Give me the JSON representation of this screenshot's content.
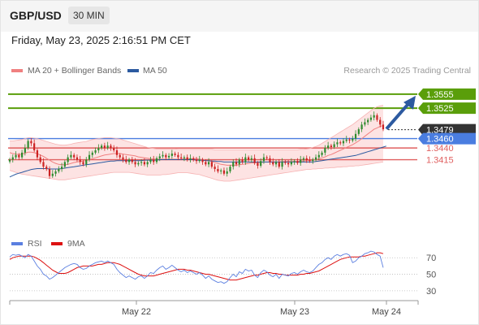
{
  "header": {
    "symbol": "GBP/USD",
    "timeframe": "30 MIN"
  },
  "timestamp": "Friday, May 23, 2025 2:16:51 PM CET",
  "credit": "Research © 2025 Trading Central",
  "colors": {
    "up": "#2e8b2e",
    "down": "#cc2222",
    "ma50": "#2c5aa0",
    "bollinger": "#f08080",
    "target": "#5a9e0a",
    "pivot": "#4a7de0",
    "support": "#e06060",
    "arrow": "#2c5aa0",
    "rsi": "#5b7fe0",
    "rsi9ma": "#dd1111"
  },
  "chart_data": [
    {
      "type": "candlestick",
      "legend": [
        {
          "name": "MA 20 + Bollinger Bands",
          "color": "#f08080"
        },
        {
          "name": "MA 50",
          "color": "#2c5aa0"
        }
      ],
      "ylim": [
        1.327,
        1.36
      ],
      "x_ticks": [
        "May 22",
        "May 23",
        "May 24"
      ],
      "levels": [
        {
          "label": "1.3555",
          "value": 1.3555,
          "kind": "target"
        },
        {
          "label": "1.3525",
          "value": 1.3525,
          "kind": "target"
        },
        {
          "label": "1.3479",
          "value": 1.3479,
          "kind": "last"
        },
        {
          "label": "1.3460",
          "value": 1.346,
          "kind": "pivot"
        },
        {
          "label": "1.3440",
          "value": 1.344,
          "kind": "support"
        },
        {
          "label": "1.3415",
          "value": 1.3415,
          "kind": "support"
        }
      ],
      "close": [
        1.3415,
        1.342,
        1.3425,
        1.342,
        1.343,
        1.344,
        1.3455,
        1.345,
        1.3435,
        1.342,
        1.341,
        1.34,
        1.3395,
        1.338,
        1.3385,
        1.339,
        1.3395,
        1.34,
        1.341,
        1.342,
        1.3425,
        1.342,
        1.3415,
        1.341,
        1.3405,
        1.3415,
        1.3425,
        1.343,
        1.3435,
        1.344,
        1.3445,
        1.344,
        1.3445,
        1.344,
        1.3435,
        1.3425,
        1.342,
        1.3415,
        1.341,
        1.3415,
        1.341,
        1.3405,
        1.3408,
        1.341,
        1.3405,
        1.341,
        1.3415,
        1.341,
        1.3418,
        1.3422,
        1.3425,
        1.342,
        1.3423,
        1.3428,
        1.3425,
        1.342,
        1.3418,
        1.342,
        1.3415,
        1.3418,
        1.3415,
        1.3412,
        1.3415,
        1.341,
        1.3405,
        1.341,
        1.34,
        1.3395,
        1.339,
        1.3392,
        1.3385,
        1.339,
        1.34,
        1.341,
        1.3405,
        1.3415,
        1.341,
        1.342,
        1.3415,
        1.3418,
        1.3408,
        1.3402,
        1.3412,
        1.342,
        1.3418,
        1.341,
        1.3405,
        1.341,
        1.34,
        1.341,
        1.3408,
        1.3405,
        1.341,
        1.3412,
        1.3408,
        1.3415,
        1.3418,
        1.3414,
        1.3412,
        1.3415,
        1.342,
        1.3425,
        1.343,
        1.344,
        1.3445,
        1.3442,
        1.3448,
        1.3452,
        1.345,
        1.3455,
        1.3458,
        1.3456,
        1.346,
        1.347,
        1.348,
        1.349,
        1.3495,
        1.35,
        1.3505,
        1.351,
        1.35,
        1.349,
        1.348
      ],
      "ma20": [
        1.343,
        1.3428,
        1.3427,
        1.3426,
        1.3427,
        1.3429,
        1.3431,
        1.3431,
        1.343,
        1.3428,
        1.3425,
        1.3422,
        1.3418,
        1.3414,
        1.341,
        1.3407,
        1.3405,
        1.3404,
        1.3404,
        1.3405,
        1.3407,
        1.3409,
        1.341,
        1.3411,
        1.3412,
        1.3413,
        1.3415,
        1.3417,
        1.3419,
        1.3421,
        1.3423,
        1.3425,
        1.3426,
        1.3427,
        1.3428,
        1.3428,
        1.3428,
        1.3427,
        1.3426,
        1.3425,
        1.3424,
        1.3423,
        1.3421,
        1.342,
        1.3419,
        1.3418,
        1.3417,
        1.3416,
        1.3416,
        1.3416,
        1.3416,
        1.3416,
        1.3416,
        1.3416,
        1.3416,
        1.3416,
        1.3416,
        1.3417,
        1.3417,
        1.3417,
        1.3417,
        1.3417,
        1.3416,
        1.3415,
        1.3414,
        1.3413,
        1.3411,
        1.3409,
        1.3407,
        1.3405,
        1.3404,
        1.3403,
        1.3403,
        1.3403,
        1.3403,
        1.3404,
        1.3405,
        1.3406,
        1.3407,
        1.3408,
        1.3408,
        1.3409,
        1.3409,
        1.341,
        1.341,
        1.341,
        1.341,
        1.341,
        1.341,
        1.3411,
        1.3411,
        1.3411,
        1.3411,
        1.3411,
        1.3411,
        1.3412,
        1.3412,
        1.3413,
        1.3413,
        1.3414,
        1.3415,
        1.3417,
        1.3419,
        1.3421,
        1.3424,
        1.3426,
        1.3429,
        1.3432,
        1.3435,
        1.3438,
        1.3441,
        1.3444,
        1.3447,
        1.3451,
        1.3455,
        1.346,
        1.3465,
        1.347,
        1.3475,
        1.348,
        1.3483,
        1.3486,
        1.3488
      ],
      "bb_upper": [
        1.3455,
        1.3455,
        1.3456,
        1.3457,
        1.3458,
        1.346,
        1.3462,
        1.3462,
        1.3461,
        1.346,
        1.3458,
        1.3456,
        1.3454,
        1.3452,
        1.345,
        1.3448,
        1.3447,
        1.3446,
        1.3446,
        1.3447,
        1.3448,
        1.345,
        1.3451,
        1.3452,
        1.3453,
        1.3454,
        1.3456,
        1.3458,
        1.3459,
        1.346,
        1.3461,
        1.3462,
        1.3462,
        1.3462,
        1.3461,
        1.346,
        1.3459,
        1.3457,
        1.3455,
        1.3453,
        1.3451,
        1.3449,
        1.3447,
        1.3445,
        1.3443,
        1.3441,
        1.344,
        1.3439,
        1.3438,
        1.3438,
        1.3438,
        1.3438,
        1.3438,
        1.3438,
        1.3438,
        1.3437,
        1.3437,
        1.3437,
        1.3437,
        1.3437,
        1.3437,
        1.3437,
        1.3437,
        1.3437,
        1.3437,
        1.3437,
        1.3437,
        1.3436,
        1.3436,
        1.3436,
        1.3436,
        1.3436,
        1.3436,
        1.3436,
        1.3436,
        1.3436,
        1.3436,
        1.3436,
        1.3436,
        1.3436,
        1.3436,
        1.3436,
        1.3436,
        1.3436,
        1.3436,
        1.3436,
        1.3436,
        1.3436,
        1.3436,
        1.3436,
        1.3436,
        1.3436,
        1.3436,
        1.3436,
        1.3436,
        1.3437,
        1.3437,
        1.3438,
        1.3439,
        1.3441,
        1.3443,
        1.3446,
        1.345,
        1.3454,
        1.3458,
        1.3462,
        1.3466,
        1.347,
        1.3474,
        1.3478,
        1.3482,
        1.3486,
        1.349,
        1.3495,
        1.35,
        1.3505,
        1.351,
        1.3515,
        1.352,
        1.3525,
        1.3528,
        1.353,
        1.3531
      ],
      "bb_lower": [
        1.3392,
        1.339,
        1.3388,
        1.3386,
        1.3384,
        1.3383,
        1.3382,
        1.3381,
        1.338,
        1.3379,
        1.3378,
        1.3377,
        1.3376,
        1.3375,
        1.3374,
        1.3373,
        1.3372,
        1.3372,
        1.3372,
        1.3373,
        1.3374,
        1.3375,
        1.3376,
        1.3377,
        1.3378,
        1.3379,
        1.338,
        1.3381,
        1.3382,
        1.3383,
        1.3384,
        1.3385,
        1.3386,
        1.3387,
        1.3388,
        1.3388,
        1.3388,
        1.3388,
        1.3388,
        1.3388,
        1.3387,
        1.3386,
        1.3385,
        1.3384,
        1.3383,
        1.3382,
        1.3382,
        1.3382,
        1.3382,
        1.3382,
        1.3383,
        1.3383,
        1.3384,
        1.3385,
        1.3386,
        1.3387,
        1.3387,
        1.3387,
        1.3387,
        1.3386,
        1.3385,
        1.3384,
        1.3383,
        1.3381,
        1.3379,
        1.3377,
        1.3375,
        1.3373,
        1.3371,
        1.337,
        1.3369,
        1.3369,
        1.3369,
        1.337,
        1.3371,
        1.3372,
        1.3373,
        1.3374,
        1.3375,
        1.3376,
        1.3377,
        1.3378,
        1.3379,
        1.338,
        1.3381,
        1.3382,
        1.3383,
        1.3384,
        1.3385,
        1.3386,
        1.3387,
        1.3388,
        1.3389,
        1.339,
        1.3391,
        1.3392,
        1.3393,
        1.3394,
        1.3394,
        1.3395,
        1.3395,
        1.3396,
        1.3396,
        1.3397,
        1.3397,
        1.3398,
        1.3398,
        1.3399,
        1.3399,
        1.34,
        1.34,
        1.3401,
        1.3401,
        1.3402,
        1.3402,
        1.3403,
        1.3404,
        1.3405,
        1.3406,
        1.3407,
        1.3408,
        1.3409,
        1.341
      ],
      "ma50": [
        1.3378,
        1.3381,
        1.3384,
        1.3386,
        1.3388,
        1.339,
        1.3392,
        1.3394,
        1.3395,
        1.3396,
        1.3396,
        1.3396,
        1.3396,
        1.3395,
        1.3395,
        1.3395,
        1.3395,
        1.3396,
        1.3397,
        1.3398,
        1.3399,
        1.34,
        1.3401,
        1.3402,
        1.3403,
        1.3404,
        1.3405,
        1.3406,
        1.3407,
        1.3408,
        1.3409,
        1.341,
        1.3411,
        1.3412,
        1.3412,
        1.3413,
        1.3413,
        1.3413,
        1.3413,
        1.3413,
        1.3413,
        1.3413,
        1.3413,
        1.3413,
        1.3414,
        1.3414,
        1.3414,
        1.3414,
        1.3414,
        1.3415,
        1.3415,
        1.3415,
        1.3415,
        1.3415,
        1.3415,
        1.3415,
        1.3415,
        1.3415,
        1.3415,
        1.3415,
        1.3415,
        1.3414,
        1.3414,
        1.3414,
        1.3413,
        1.3413,
        1.3412,
        1.3412,
        1.3411,
        1.3411,
        1.341,
        1.341,
        1.341,
        1.341,
        1.341,
        1.341,
        1.341,
        1.341,
        1.341,
        1.341,
        1.341,
        1.341,
        1.341,
        1.341,
        1.341,
        1.341,
        1.341,
        1.341,
        1.341,
        1.341,
        1.341,
        1.341,
        1.341,
        1.341,
        1.341,
        1.341,
        1.341,
        1.341,
        1.341,
        1.341,
        1.3411,
        1.3412,
        1.3413,
        1.3414,
        1.3415,
        1.3416,
        1.3417,
        1.3418,
        1.3419,
        1.342,
        1.3421,
        1.3422,
        1.3423,
        1.3424,
        1.3426,
        1.3428,
        1.343,
        1.3432,
        1.3434,
        1.3436,
        1.3438,
        1.344,
        1.3442,
        1.3444
      ]
    },
    {
      "type": "line",
      "legend": [
        {
          "name": "RSI",
          "color": "#5b7fe0"
        },
        {
          "name": "9MA",
          "color": "#dd1111"
        }
      ],
      "ylim": [
        20,
        85
      ],
      "levels": [
        {
          "label": "70",
          "value": 70
        },
        {
          "label": "50",
          "value": 50
        },
        {
          "label": "30",
          "value": 30
        }
      ],
      "rsi": [
        71,
        74,
        73,
        74,
        72,
        70,
        74,
        72,
        66,
        60,
        56,
        50,
        48,
        44,
        46,
        49,
        52,
        55,
        58,
        60,
        62,
        63,
        62,
        58,
        56,
        57,
        60,
        62,
        64,
        65,
        66,
        64,
        66,
        64,
        62,
        56,
        52,
        49,
        46,
        48,
        46,
        44,
        47,
        48,
        45,
        48,
        52,
        51,
        55,
        58,
        60,
        56,
        58,
        61,
        58,
        55,
        53,
        55,
        52,
        54,
        52,
        50,
        52,
        49,
        45,
        48,
        44,
        42,
        40,
        41,
        39,
        41,
        46,
        50,
        47,
        53,
        51,
        56,
        54,
        55,
        49,
        46,
        52,
        55,
        53,
        49,
        47,
        50,
        45,
        50,
        49,
        48,
        51,
        52,
        50,
        53,
        55,
        53,
        52,
        54,
        58,
        62,
        64,
        68,
        70,
        68,
        72,
        74,
        72,
        74,
        75,
        73,
        64,
        66,
        70,
        72,
        75,
        76,
        78,
        77,
        74,
        72,
        58
      ],
      "rsi_9ma": [
        68,
        70,
        71,
        72,
        72,
        72,
        72,
        72,
        71,
        69,
        67,
        64,
        61,
        58,
        55,
        53,
        51,
        51,
        51,
        52,
        54,
        56,
        58,
        59,
        60,
        60,
        60,
        60,
        61,
        62,
        62,
        63,
        64,
        64,
        64,
        63,
        62,
        60,
        58,
        56,
        54,
        52,
        50,
        49,
        48,
        48,
        48,
        48,
        49,
        50,
        51,
        52,
        53,
        54,
        55,
        56,
        56,
        56,
        55,
        55,
        54,
        53,
        52,
        51,
        50,
        50,
        49,
        48,
        47,
        46,
        45,
        44,
        43,
        43,
        43,
        44,
        45,
        46,
        47,
        48,
        49,
        49,
        50,
        51,
        52,
        52,
        51,
        51,
        50,
        50,
        49,
        49,
        49,
        49,
        49,
        50,
        50,
        51,
        51,
        52,
        53,
        54,
        56,
        58,
        60,
        62,
        64,
        66,
        68,
        69,
        70,
        71,
        71,
        71,
        71,
        72,
        72,
        73,
        74,
        75,
        76,
        76,
        75
      ]
    }
  ]
}
